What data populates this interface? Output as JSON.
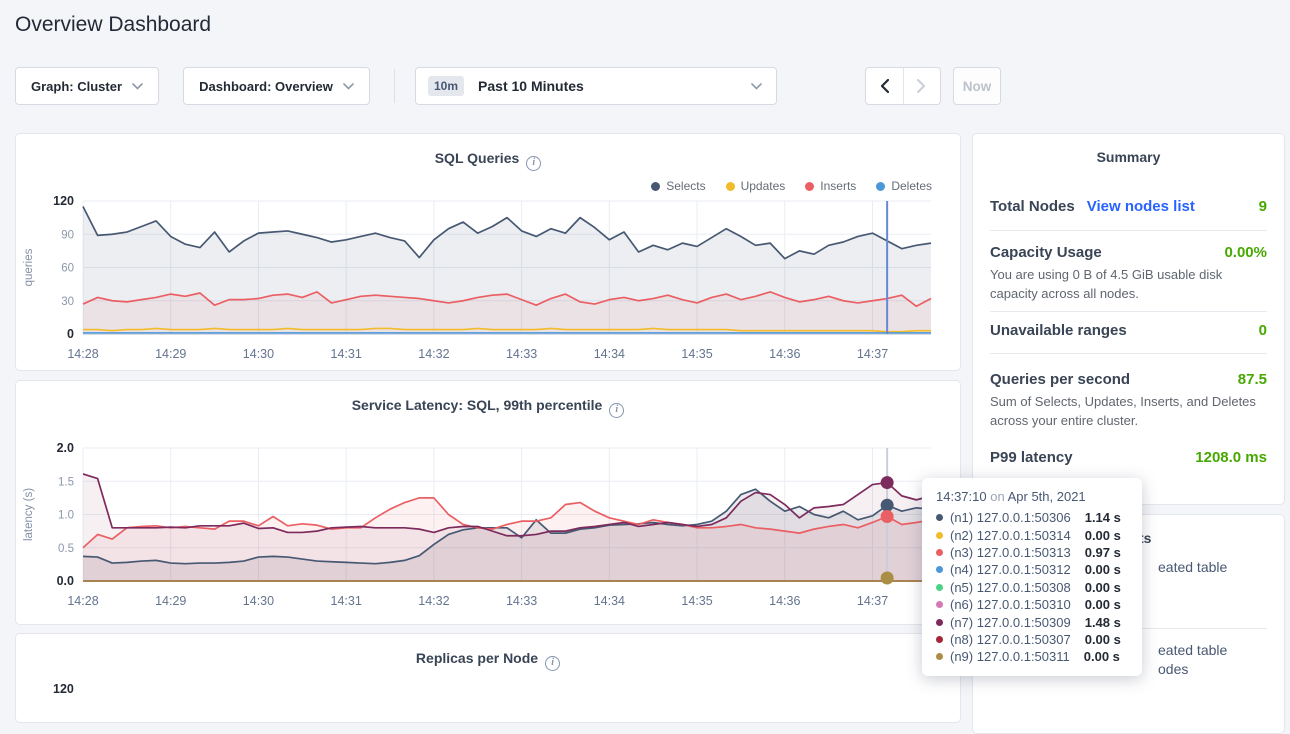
{
  "page": {
    "title": "Overview Dashboard"
  },
  "controls": {
    "graph_dropdown": "Graph: Cluster",
    "dashboard_dropdown": "Dashboard: Overview",
    "range_badge": "10m",
    "range_label": "Past 10 Minutes",
    "now_label": "Now"
  },
  "colors": {
    "link_blue": "#2962ff",
    "positive_green": "#46a800",
    "selects_navy": "#475872",
    "updates_yellow": "#f2bb29",
    "inserts_red": "#ea5f63",
    "deletes_blue": "#4c97d8",
    "n5_green": "#4dd388",
    "n6_orchid": "#d678b8",
    "n7_wine": "#7d2a5c",
    "n8_crimson": "#a32639",
    "n9_khaki": "#aa8e44"
  },
  "summary": {
    "title": "Summary",
    "total_nodes_label": "Total Nodes",
    "view_nodes_link": "View nodes list",
    "total_nodes_value": "9",
    "capacity_label": "Capacity Usage",
    "capacity_value": "0.00%",
    "capacity_desc": "You are using 0 B of 4.5 GiB usable disk capacity across all nodes.",
    "unavailable_label": "Unavailable ranges",
    "unavailable_value": "0",
    "qps_label": "Queries per second",
    "qps_value": "87.5",
    "qps_desc": "Sum of Selects, Updates, Inserts, and Deletes across your entire cluster.",
    "p99_label": "P99 latency",
    "p99_value": "1208.0 ms"
  },
  "events": {
    "heading": "Events",
    "fragments": [
      "eated table",
      "eated table",
      "odes"
    ]
  },
  "tooltip": {
    "time": "14:37:10",
    "on": "on",
    "date": "Apr 5th, 2021",
    "rows": [
      {
        "label": "(n1) 127.0.0.1:50306",
        "value": "1.14 s",
        "color": "#475872"
      },
      {
        "label": "(n2) 127.0.0.1:50314",
        "value": "0.00 s",
        "color": "#f2bb29"
      },
      {
        "label": "(n3) 127.0.0.1:50313",
        "value": "0.97 s",
        "color": "#ea5f63"
      },
      {
        "label": "(n4) 127.0.0.1:50312",
        "value": "0.00 s",
        "color": "#4c97d8"
      },
      {
        "label": "(n5) 127.0.0.1:50308",
        "value": "0.00 s",
        "color": "#4dd388"
      },
      {
        "label": "(n6) 127.0.0.1:50310",
        "value": "0.00 s",
        "color": "#d678b8"
      },
      {
        "label": "(n7) 127.0.0.1:50309",
        "value": "1.48 s",
        "color": "#7d2a5c"
      },
      {
        "label": "(n8) 127.0.0.1:50307",
        "value": "0.00 s",
        "color": "#a32639"
      },
      {
        "label": "(n9) 127.0.0.1:50311",
        "value": "0.00 s",
        "color": "#aa8e44"
      }
    ]
  },
  "replicas_clipped_tick": "120",
  "chart_data": [
    {
      "type": "line",
      "title": "SQL Queries",
      "ylabel": "queries",
      "ylim": [
        0,
        120
      ],
      "yticks": [
        0,
        30,
        60,
        90,
        120
      ],
      "ytick_labels": [
        "0",
        "30",
        "60",
        "90",
        "120"
      ],
      "x_ticks": [
        "14:28",
        "14:29",
        "14:30",
        "14:31",
        "14:32",
        "14:33",
        "14:34",
        "14:35",
        "14:36",
        "14:37"
      ],
      "x_tick_every": 6,
      "points": 59,
      "grid": true,
      "legend_position": "top-right",
      "legend": [
        {
          "name": "Selects",
          "color": "#475872"
        },
        {
          "name": "Updates",
          "color": "#f2bb29"
        },
        {
          "name": "Inserts",
          "color": "#ea5f63"
        },
        {
          "name": "Deletes",
          "color": "#4c97d8"
        }
      ],
      "hover": {
        "index": 55,
        "color": "#6787d7"
      },
      "series": [
        {
          "name": "Selects",
          "color": "#475872",
          "fill": "rgba(71,88,114,0.10)",
          "values": [
            115,
            89,
            90,
            92,
            97,
            102,
            88,
            81,
            78,
            92,
            74,
            84,
            91,
            92,
            93,
            90,
            87,
            83,
            85,
            88,
            91,
            87,
            84,
            69,
            85,
            95,
            101,
            91,
            97,
            105,
            93,
            88,
            95,
            91,
            105,
            96,
            85,
            92,
            74,
            80,
            76,
            82,
            79,
            87,
            95,
            88,
            80,
            82,
            68,
            75,
            72,
            80,
            83,
            88,
            91,
            84,
            77,
            80,
            82
          ]
        },
        {
          "name": "Inserts",
          "color": "#ea5f63",
          "fill": "rgba(234,95,99,0.08)",
          "values": [
            27,
            33,
            30,
            29,
            31,
            33,
            36,
            34,
            37,
            26,
            31,
            31,
            32,
            35,
            36,
            33,
            38,
            28,
            31,
            34,
            35,
            34,
            33,
            32,
            30,
            28,
            30,
            33,
            35,
            36,
            31,
            26,
            32,
            36,
            29,
            27,
            31,
            33,
            30,
            32,
            35,
            31,
            28,
            33,
            36,
            31,
            34,
            38,
            33,
            29,
            31,
            34,
            30,
            28,
            30,
            32,
            35,
            25,
            32
          ]
        },
        {
          "name": "Updates",
          "color": "#f2bb29",
          "values": [
            4,
            4,
            3,
            4,
            4,
            5,
            4,
            4,
            4,
            5,
            4,
            4,
            4,
            4,
            5,
            4,
            4,
            4,
            4,
            4,
            5,
            5,
            4,
            4,
            4,
            4,
            4,
            5,
            4,
            4,
            4,
            4,
            5,
            4,
            4,
            4,
            4,
            4,
            4,
            5,
            4,
            4,
            4,
            4,
            4,
            3,
            3,
            3,
            3,
            3,
            3,
            3,
            3,
            3,
            3,
            2,
            2,
            3,
            3
          ]
        },
        {
          "name": "Deletes",
          "color": "#4c97d8",
          "flat": 1
        }
      ]
    },
    {
      "type": "line",
      "title": "Service Latency: SQL, 99th percentile",
      "ylabel": "latency (s)",
      "ylim": [
        0,
        2
      ],
      "yticks": [
        0,
        0.5,
        1.0,
        1.5,
        2.0
      ],
      "ytick_labels": [
        "0.0",
        "0.5",
        "1.0",
        "1.5",
        "2.0"
      ],
      "x_ticks": [
        "14:28",
        "14:29",
        "14:30",
        "14:31",
        "14:32",
        "14:33",
        "14:34",
        "14:35",
        "14:36",
        "14:37"
      ],
      "x_tick_every": 6,
      "points": 59,
      "grid": true,
      "hover": {
        "index": 55,
        "color": "#c9cfda",
        "dot_series": [
          5,
          6,
          7,
          8
        ]
      },
      "series": [
        {
          "name": "(n2) 127.0.0.1:50314",
          "color": "#f2bb29",
          "flat": 0
        },
        {
          "name": "(n4) 127.0.0.1:50312",
          "color": "#4c97d8",
          "flat": 0
        },
        {
          "name": "(n5) 127.0.0.1:50308",
          "color": "#4dd388",
          "flat": 0
        },
        {
          "name": "(n6) 127.0.0.1:50310",
          "color": "#d678b8",
          "flat": 0
        },
        {
          "name": "(n8) 127.0.0.1:50307",
          "color": "#a32639",
          "flat": 0
        },
        {
          "name": "(n9) 127.0.0.1:50311",
          "color": "#aa8e44",
          "flat": 0
        },
        {
          "name": "(n1) 127.0.0.1:50306",
          "color": "#475872",
          "fill": "rgba(71,88,114,0.12)",
          "values": [
            0.37,
            0.36,
            0.27,
            0.28,
            0.3,
            0.31,
            0.27,
            0.26,
            0.27,
            0.27,
            0.28,
            0.3,
            0.36,
            0.37,
            0.36,
            0.33,
            0.3,
            0.29,
            0.28,
            0.27,
            0.26,
            0.28,
            0.31,
            0.38,
            0.55,
            0.7,
            0.77,
            0.8,
            0.8,
            0.8,
            0.65,
            0.92,
            0.72,
            0.72,
            0.78,
            0.8,
            0.84,
            0.85,
            0.86,
            0.88,
            0.85,
            0.83,
            0.85,
            0.9,
            1.05,
            1.3,
            1.38,
            1.2,
            1.05,
            1.12,
            1.0,
            0.95,
            1.05,
            0.92,
            0.98,
            1.14,
            1.05,
            1.1,
            1.08
          ]
        },
        {
          "name": "(n3) 127.0.0.1:50313",
          "color": "#ea5f63",
          "fill": "rgba(234,95,99,0.09)",
          "values": [
            0.5,
            0.7,
            0.63,
            0.8,
            0.82,
            0.83,
            0.8,
            0.82,
            0.8,
            0.78,
            0.9,
            0.9,
            0.83,
            0.97,
            0.83,
            0.86,
            0.84,
            0.78,
            0.8,
            0.8,
            0.95,
            1.08,
            1.18,
            1.25,
            1.25,
            1.0,
            0.85,
            0.8,
            0.78,
            0.85,
            0.9,
            0.9,
            0.95,
            1.15,
            1.18,
            1.05,
            0.95,
            0.9,
            0.85,
            0.92,
            0.88,
            0.85,
            0.8,
            0.8,
            0.82,
            0.85,
            0.8,
            0.78,
            0.75,
            0.72,
            0.78,
            0.82,
            0.85,
            0.8,
            0.88,
            0.97,
            0.85,
            0.88,
            0.92
          ]
        },
        {
          "name": "(n7) 127.0.0.1:50309",
          "color": "#7d2a5c",
          "fill": "rgba(125,42,92,0.07)",
          "values": [
            1.61,
            1.54,
            0.8,
            0.8,
            0.8,
            0.8,
            0.81,
            0.8,
            0.83,
            0.83,
            0.83,
            0.87,
            0.79,
            0.8,
            0.73,
            0.73,
            0.75,
            0.8,
            0.81,
            0.82,
            0.8,
            0.8,
            0.8,
            0.78,
            0.73,
            0.8,
            0.82,
            0.82,
            0.75,
            0.68,
            0.68,
            0.7,
            0.75,
            0.75,
            0.8,
            0.82,
            0.85,
            0.88,
            0.82,
            0.85,
            0.88,
            0.85,
            0.82,
            0.85,
            0.95,
            1.2,
            1.33,
            1.3,
            1.15,
            0.95,
            1.1,
            1.12,
            1.15,
            1.3,
            1.45,
            1.48,
            1.28,
            1.22,
            1.28
          ]
        }
      ]
    },
    {
      "type": "line",
      "title": "Replicas per Node"
    }
  ]
}
